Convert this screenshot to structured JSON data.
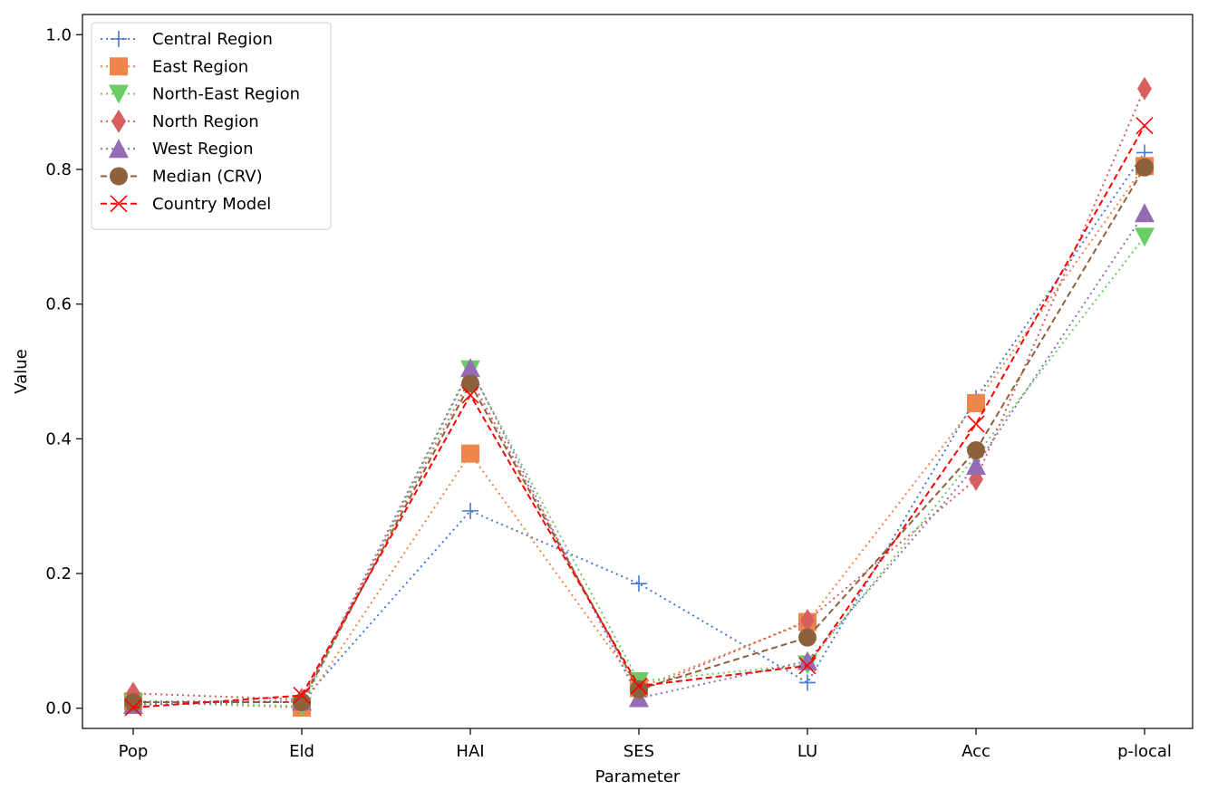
{
  "chart_data": {
    "type": "line",
    "title": "",
    "xlabel": "Parameter",
    "ylabel": "Value",
    "categories": [
      "Pop",
      "Eld",
      "HAI",
      "SES",
      "LU",
      "Acc",
      "p-local"
    ],
    "ylim": [
      -0.03,
      1.03
    ],
    "yticks": [
      0.0,
      0.2,
      0.4,
      0.6,
      0.8,
      1.0
    ],
    "ytick_labels": [
      "0.0",
      "0.2",
      "0.4",
      "0.6",
      "0.8",
      "1.0"
    ],
    "grid": false,
    "legend": "top-left",
    "series": [
      {
        "name": "Central Region",
        "color": "#4878cf",
        "marker": "plus",
        "linestyle": "dotted",
        "values": [
          0.01,
          0.01,
          0.293,
          0.185,
          0.038,
          0.46,
          0.825
        ]
      },
      {
        "name": "East Region",
        "color": "#ee854a",
        "marker": "square",
        "linestyle": "dotted",
        "values": [
          0.01,
          0.001,
          0.378,
          0.03,
          0.128,
          0.453,
          0.805
        ]
      },
      {
        "name": "North-East Region",
        "color": "#6acc64",
        "marker": "triangle-down",
        "linestyle": "dotted",
        "values": [
          0.008,
          0.003,
          0.503,
          0.04,
          0.065,
          0.375,
          0.7
        ]
      },
      {
        "name": "North Region",
        "color": "#d65f5f",
        "marker": "diamond",
        "linestyle": "dotted",
        "values": [
          0.022,
          0.013,
          0.49,
          0.025,
          0.13,
          0.34,
          0.92
        ]
      },
      {
        "name": "West Region",
        "color": "#956cb4",
        "marker": "triangle-up",
        "linestyle": "dotted",
        "values": [
          0.005,
          0.01,
          0.505,
          0.015,
          0.07,
          0.36,
          0.735
        ]
      },
      {
        "name": "Median (CRV)",
        "color": "#8c613c",
        "marker": "circle",
        "linestyle": "dashed",
        "values": [
          0.009,
          0.009,
          0.482,
          0.028,
          0.105,
          0.383,
          0.803
        ]
      },
      {
        "name": "Country Model",
        "color": "#ff0000",
        "marker": "x",
        "linestyle": "dashed",
        "values": [
          0.001,
          0.019,
          0.465,
          0.033,
          0.063,
          0.422,
          0.865
        ]
      }
    ]
  }
}
